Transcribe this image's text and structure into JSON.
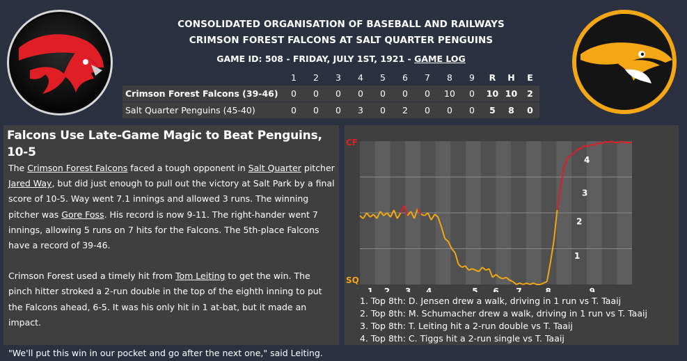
{
  "header": {
    "league": "CONSOLIDATED ORGANISATION OF BASEBALL AND RAILWAYS",
    "matchup": "CRIMSON FOREST FALCONS AT SALT QUARTER PENGUINS",
    "game_info": "GAME ID: 508 - FRIDAY, JULY 1ST, 1921 - ",
    "game_log_link": "GAME LOG"
  },
  "logos": {
    "away": {
      "icon": "falcon-head-icon",
      "color": "#e01e26"
    },
    "home": {
      "icon": "penguin-head-icon",
      "color": "#f3a715"
    }
  },
  "linescore": {
    "headers": [
      "1",
      "2",
      "3",
      "4",
      "5",
      "6",
      "7",
      "8",
      "9",
      "R",
      "H",
      "E"
    ],
    "rows": [
      {
        "team": "Crimson Forest Falcons (39-46)",
        "cells": [
          "0",
          "0",
          "0",
          "0",
          "0",
          "0",
          "0",
          "10",
          "0",
          "10",
          "10",
          "2"
        ]
      },
      {
        "team": "Salt Quarter Penguins (45-40)",
        "cells": [
          "0",
          "0",
          "0",
          "3",
          "0",
          "2",
          "0",
          "0",
          "0",
          "5",
          "8",
          "0"
        ]
      }
    ]
  },
  "story": {
    "headline": "Falcons Use Late-Game Magic to Beat Penguins, 10-5",
    "p1": [
      {
        "t": "The "
      },
      {
        "t": "Crimson Forest Falcons",
        "link": true
      },
      {
        "t": " faced a tough opponent in "
      },
      {
        "t": "Salt Quarter",
        "link": true
      },
      {
        "t": " pitcher "
      },
      {
        "t": "Jared Way",
        "link": true
      },
      {
        "t": ", but did just enough to pull out the victory at Salt Park by a final score of 10-5. Way went 7.1 innings and allowed 3 runs. The winning pitcher was "
      },
      {
        "t": "Gore Foss",
        "link": true
      },
      {
        "t": ". His record is now 9-11. The right-hander went 7 innings, allowing 5 runs on 7 hits for the Falcons. The 5th-place Falcons have a record of 39-46."
      }
    ],
    "p2": [
      {
        "t": "Crimson Forest used a timely hit from "
      },
      {
        "t": "Tom Leiting",
        "link": true
      },
      {
        "t": " to get the win. The pinch hitter stroked a 2-run double in the top of the eighth inning to put the Falcons ahead, 6-5. It was his only hit in 1 at-bat, but it made an impact."
      }
    ],
    "p3": "\"We'll put this win in our pocket and go after the next one,\" said Leiting."
  },
  "chart_data": {
    "type": "line",
    "top_label": "CF",
    "bottom_label": "SQ",
    "top_label_color": "#e01e26",
    "bottom_label_color": "#f3a715",
    "x_tick_labels": [
      "1",
      "2",
      "3",
      "4",
      "5",
      "6",
      "7",
      "8",
      "9"
    ],
    "ylim": [
      0,
      1
    ],
    "annotations": [
      "1",
      "2",
      "3",
      "4"
    ],
    "x": [
      0,
      1,
      2,
      3,
      4,
      5,
      6,
      7,
      8,
      9,
      10,
      11,
      12,
      13,
      14,
      15,
      16,
      17,
      18,
      19,
      20,
      21,
      22,
      23,
      24,
      25,
      26,
      27,
      28,
      29,
      30,
      31,
      32,
      33,
      34,
      35,
      36,
      37,
      38,
      39,
      40,
      41,
      42,
      43,
      44,
      45,
      46,
      47,
      48,
      49,
      50,
      51,
      52,
      53,
      54,
      55,
      56,
      57,
      58,
      59,
      60,
      61,
      62,
      63,
      64,
      65,
      66,
      67,
      68,
      69,
      70,
      71,
      72,
      73,
      74,
      75,
      76,
      77,
      78,
      79,
      80
    ],
    "y": [
      0.48,
      0.46,
      0.5,
      0.47,
      0.49,
      0.46,
      0.51,
      0.48,
      0.5,
      0.47,
      0.52,
      0.46,
      0.5,
      0.55,
      0.48,
      0.51,
      0.46,
      0.53,
      0.49,
      0.48,
      0.5,
      0.45,
      0.49,
      0.47,
      0.4,
      0.32,
      0.3,
      0.25,
      0.22,
      0.14,
      0.12,
      0.13,
      0.1,
      0.11,
      0.1,
      0.09,
      0.12,
      0.1,
      0.11,
      0.05,
      0.07,
      0.05,
      0.04,
      0.05,
      0.03,
      0.02,
      0.0,
      0.01,
      0.0,
      0.01,
      0.0,
      0.01,
      0.0,
      0.0,
      0.01,
      0.02,
      0.15,
      0.3,
      0.52,
      0.68,
      0.82,
      0.88,
      0.9,
      0.92,
      0.94,
      0.95,
      0.97,
      0.96,
      0.98,
      0.97,
      0.99,
      0.98,
      1.0,
      0.99,
      1.0,
      0.99,
      0.99,
      1.0,
      0.99,
      0.99,
      0.99
    ],
    "threshold": 0.5,
    "above_color": "#e01e26",
    "below_color": "#f3a715"
  },
  "key_plays": [
    "1. Top 8th: D. Jensen drew a walk, driving in 1 run vs T. Taaij",
    "2. Top 8th: M. Schumacher drew a walk, driving in 1 run vs T. Taaij",
    "3. Top 8th: T. Leiting hit a 2-run double vs T. Taaij",
    "4. Top 8th: C. Tiggs hit a 2-run single vs T. Taaij"
  ]
}
